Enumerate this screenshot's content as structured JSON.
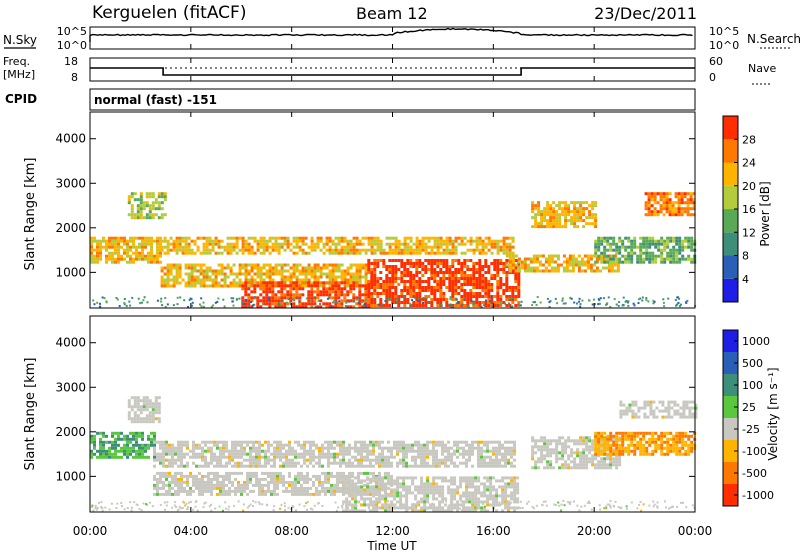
{
  "header": {
    "station": "Kerguelen (fitACF)",
    "beam": "Beam 12",
    "date": "23/Dec/2011"
  },
  "nsky": {
    "label": "N.Sky",
    "right_label": "N.Search",
    "tick_top": "10^5",
    "tick_bottom": "10^0"
  },
  "freq": {
    "label_line1": "Freq.",
    "label_line2": "[MHz]",
    "left_ticks": [
      "18",
      "8"
    ],
    "right_ticks": [
      "60",
      "0"
    ],
    "right_label": "Nave",
    "level_segments": [
      {
        "start_hour": 0.0,
        "end_hour": 2.9,
        "level": "high"
      },
      {
        "start_hour": 2.9,
        "end_hour": 17.1,
        "level": "low"
      },
      {
        "start_hour": 17.1,
        "end_hour": 24.0,
        "level": "high"
      }
    ]
  },
  "cpid": {
    "label": "CPID",
    "mode": "normal (fast) -151"
  },
  "chart_data": [
    {
      "type": "heatmap",
      "panel": "power",
      "ylabel": "Slant Range [km]",
      "xlabel": "",
      "y_ticks": [
        "1000",
        "2000",
        "3000",
        "4000"
      ],
      "ylim": [
        200,
        4600
      ],
      "xlim": [
        0,
        24
      ],
      "colorbar": {
        "label": "Power [dB]",
        "ticks": [
          "4",
          "8",
          "12",
          "16",
          "20",
          "24",
          "28"
        ],
        "colors": [
          "#1e1ee6",
          "#2a5fb8",
          "#3d8f7a",
          "#5aaa55",
          "#b4cc3c",
          "#ffb400",
          "#ff7800",
          "#ff2d00"
        ]
      },
      "echo_bands": [
        {
          "start_hour": 0.0,
          "end_hour": 2.8,
          "range_min": 1200,
          "range_max": 1800,
          "level": 20
        },
        {
          "start_hour": 2.8,
          "end_hour": 16.8,
          "range_min": 1400,
          "range_max": 1800,
          "level": 20
        },
        {
          "start_hour": 2.8,
          "end_hour": 11.0,
          "range_min": 700,
          "range_max": 1200,
          "level": 20
        },
        {
          "start_hour": 6.0,
          "end_hour": 11.0,
          "range_min": 250,
          "range_max": 800,
          "level": 28
        },
        {
          "start_hour": 11.0,
          "end_hour": 17.0,
          "range_min": 250,
          "range_max": 1300,
          "level": 28
        },
        {
          "start_hour": 16.5,
          "end_hour": 21.0,
          "range_min": 1000,
          "range_max": 1400,
          "level": 20
        },
        {
          "start_hour": 17.5,
          "end_hour": 20.0,
          "range_min": 2000,
          "range_max": 2600,
          "level": 20
        },
        {
          "start_hour": 20.0,
          "end_hour": 24.0,
          "range_min": 1200,
          "range_max": 1800,
          "level": 12
        },
        {
          "start_hour": 22.0,
          "end_hour": 24.0,
          "range_min": 2300,
          "range_max": 2800,
          "level": 24
        },
        {
          "start_hour": 1.5,
          "end_hour": 3.0,
          "range_min": 2200,
          "range_max": 2800,
          "level": 16
        }
      ]
    },
    {
      "type": "heatmap",
      "panel": "velocity",
      "ylabel": "Slant Range [km]",
      "xlabel": "Time UT",
      "x_ticks": [
        "00:00",
        "04:00",
        "08:00",
        "12:00",
        "16:00",
        "20:00",
        "00:00"
      ],
      "y_ticks": [
        "1000",
        "2000",
        "3000",
        "4000"
      ],
      "ylim": [
        200,
        4600
      ],
      "xlim": [
        0,
        24
      ],
      "colorbar": {
        "label": "Velocity [m s⁻¹]",
        "ticks": [
          "1000",
          "500",
          "100",
          "25",
          "-25",
          "-100",
          "-500",
          "-1000"
        ],
        "colors": [
          "#1e1ee6",
          "#2a5fb8",
          "#3d8f7a",
          "#5ac83c",
          "#c8c8c0",
          "#ffb400",
          "#ff7800",
          "#ff2d00"
        ]
      },
      "echo_bands": [
        {
          "start_hour": 0.0,
          "end_hour": 2.5,
          "range_min": 1400,
          "range_max": 2000,
          "level": 100
        },
        {
          "start_hour": 2.5,
          "end_hour": 16.8,
          "range_min": 1200,
          "range_max": 1800,
          "level": 0
        },
        {
          "start_hour": 2.5,
          "end_hour": 12.0,
          "range_min": 600,
          "range_max": 1100,
          "level": 0
        },
        {
          "start_hour": 10.0,
          "end_hour": 17.0,
          "range_min": 250,
          "range_max": 1000,
          "level": 0
        },
        {
          "start_hour": 17.5,
          "end_hour": 21.0,
          "range_min": 1200,
          "range_max": 1900,
          "level": 0
        },
        {
          "start_hour": 20.0,
          "end_hour": 24.0,
          "range_min": 1500,
          "range_max": 2000,
          "level": -100
        },
        {
          "start_hour": 21.0,
          "end_hour": 24.0,
          "range_min": 2300,
          "range_max": 2700,
          "level": 0
        },
        {
          "start_hour": 1.5,
          "end_hour": 2.8,
          "range_min": 2200,
          "range_max": 2800,
          "level": 0
        }
      ]
    }
  ]
}
